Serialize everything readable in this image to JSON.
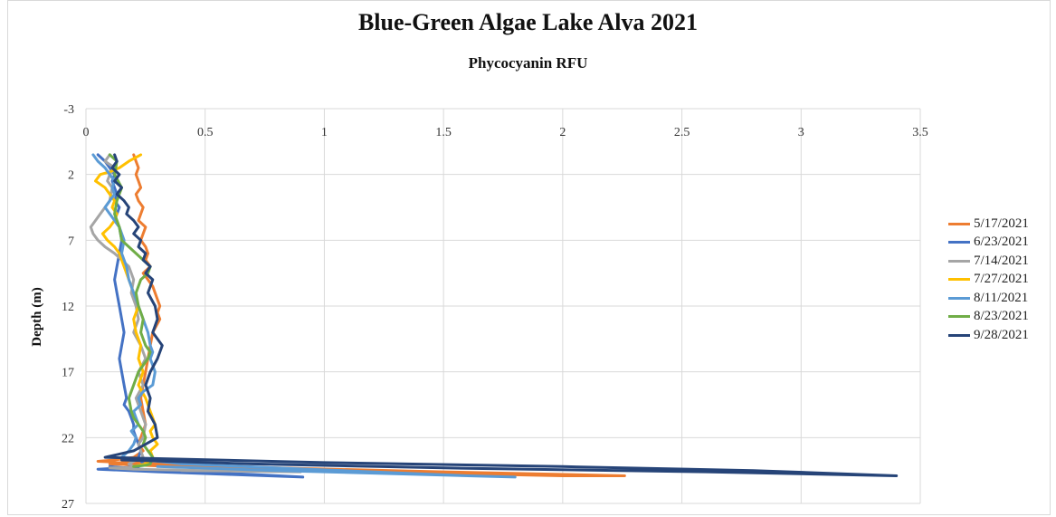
{
  "chart_data": {
    "type": "line",
    "title": "Blue-Green Algae Lake Alva 2021",
    "subtitle": "Phycocyanin RFU",
    "xlabel": "",
    "ylabel": "Depth (m)",
    "xlim": [
      0,
      3.5
    ],
    "ylim": [
      -3,
      27
    ],
    "y_reversed": true,
    "x_axis_position": "top",
    "x_ticks": [
      0,
      0.5,
      1,
      1.5,
      2,
      2.5,
      3,
      3.5
    ],
    "x_tick_labels": [
      "0",
      "0.5",
      "1",
      "1.5",
      "2",
      "2.5",
      "3",
      "3.5"
    ],
    "y_ticks": [
      -3,
      2,
      7,
      12,
      17,
      22,
      27
    ],
    "grid": true,
    "legend_position": "right",
    "series": [
      {
        "name": "5/17/2021",
        "color": "#ED7D31",
        "x": [
          0.2,
          0.21,
          0.22,
          0.21,
          0.22,
          0.23,
          0.21,
          0.22,
          0.24,
          0.23,
          0.22,
          0.25,
          0.24,
          0.23,
          0.25,
          0.26,
          0.25,
          0.27,
          0.24,
          0.26,
          0.28,
          0.29,
          0.3,
          0.31,
          0.3,
          0.31,
          0.28,
          0.27,
          0.26,
          0.25,
          0.24,
          0.23,
          0.24,
          0.25,
          0.23,
          0.22,
          0.24,
          0.2,
          0.12,
          0.05,
          0.3,
          0.8,
          1.5,
          2.26,
          2.0,
          1.2,
          0.5,
          0.1
        ],
        "y": [
          0.5,
          1.0,
          1.5,
          2.0,
          2.5,
          3.0,
          3.5,
          4.0,
          4.5,
          5.0,
          5.5,
          6.0,
          6.5,
          7.0,
          7.5,
          8.0,
          8.5,
          9.0,
          9.5,
          10.0,
          10.5,
          11.0,
          11.5,
          12.0,
          12.5,
          13.0,
          14.0,
          15.0,
          16.0,
          17.0,
          18.0,
          19.0,
          20.0,
          21.0,
          22.0,
          22.5,
          23.0,
          23.5,
          23.7,
          23.8,
          24.0,
          24.3,
          24.6,
          24.9,
          24.9,
          24.6,
          24.3,
          24.0
        ]
      },
      {
        "name": "6/23/2021",
        "color": "#4472C4",
        "x": [
          0.05,
          0.08,
          0.1,
          0.12,
          0.11,
          0.12,
          0.13,
          0.12,
          0.14,
          0.13,
          0.12,
          0.14,
          0.15,
          0.14,
          0.13,
          0.12,
          0.13,
          0.14,
          0.15,
          0.16,
          0.15,
          0.14,
          0.15,
          0.16,
          0.17,
          0.16,
          0.18,
          0.19,
          0.2,
          0.2,
          0.21,
          0.22,
          0.23,
          0.22,
          0.24,
          0.22,
          0.15,
          0.05,
          0.3,
          0.6,
          0.91,
          0.7,
          0.3,
          0.1
        ],
        "y": [
          0.5,
          1.0,
          1.5,
          2.0,
          2.5,
          3.0,
          3.5,
          4.0,
          4.5,
          5.0,
          5.5,
          6.0,
          7.0,
          8.0,
          9.0,
          10.0,
          11.0,
          12.0,
          13.0,
          14.0,
          15.0,
          16.0,
          17.0,
          18.0,
          19.0,
          19.5,
          20.0,
          20.5,
          21.0,
          21.5,
          22.0,
          22.5,
          23.0,
          23.5,
          24.0,
          24.2,
          24.3,
          24.4,
          24.6,
          24.8,
          25.0,
          24.8,
          24.5,
          24.2
        ]
      },
      {
        "name": "7/14/2021",
        "color": "#A5A5A5",
        "x": [
          0.1,
          0.08,
          0.12,
          0.1,
          0.09,
          0.11,
          0.1,
          0.06,
          0.02,
          0.03,
          0.05,
          0.08,
          0.12,
          0.15,
          0.18,
          0.2,
          0.19,
          0.21,
          0.22,
          0.2,
          0.23,
          0.25,
          0.22,
          0.24,
          0.21,
          0.23,
          0.25,
          0.24,
          0.22,
          0.23,
          0.24,
          0.2,
          0.18,
          0.2,
          0.16,
          0.1,
          0.2,
          0.5,
          0.9,
          0.4
        ],
        "y": [
          0.5,
          1.0,
          1.5,
          2.0,
          2.5,
          3.0,
          4.0,
          5.0,
          6.0,
          6.5,
          7.0,
          7.5,
          8.0,
          8.5,
          9.0,
          10.0,
          11.0,
          12.0,
          13.0,
          14.0,
          15.0,
          16.0,
          17.0,
          18.0,
          19.0,
          20.0,
          21.0,
          22.0,
          22.5,
          23.0,
          23.5,
          23.8,
          24.0,
          24.2,
          24.3,
          24.3,
          24.4,
          24.5,
          24.6,
          24.5
        ]
      },
      {
        "name": "7/27/2021",
        "color": "#FFC000",
        "x": [
          0.23,
          0.18,
          0.14,
          0.1,
          0.06,
          0.04,
          0.08,
          0.1,
          0.12,
          0.11,
          0.13,
          0.12,
          0.1,
          0.07,
          0.09,
          0.12,
          0.14,
          0.16,
          0.18,
          0.2,
          0.22,
          0.2,
          0.21,
          0.23,
          0.22,
          0.24,
          0.22,
          0.25,
          0.27,
          0.28,
          0.29,
          0.27,
          0.28,
          0.3,
          0.27,
          0.28,
          0.25,
          0.2
        ],
        "y": [
          0.5,
          1.0,
          1.5,
          1.8,
          2.0,
          2.5,
          3.0,
          3.5,
          4.0,
          4.5,
          5.0,
          5.5,
          6.0,
          6.5,
          7.0,
          7.5,
          8.0,
          9.0,
          10.0,
          11.0,
          12.0,
          13.0,
          14.0,
          15.0,
          16.0,
          17.0,
          18.0,
          19.0,
          20.0,
          20.5,
          21.0,
          21.5,
          22.0,
          22.5,
          23.0,
          23.5,
          24.0,
          24.2
        ]
      },
      {
        "name": "8/11/2021",
        "color": "#5B9BD5",
        "x": [
          0.03,
          0.05,
          0.08,
          0.1,
          0.12,
          0.11,
          0.12,
          0.1,
          0.08,
          0.1,
          0.12,
          0.14,
          0.16,
          0.15,
          0.17,
          0.18,
          0.2,
          0.22,
          0.24,
          0.26,
          0.27,
          0.28,
          0.27,
          0.29,
          0.28,
          0.24,
          0.22,
          0.23,
          0.2,
          0.21,
          0.22,
          0.19,
          0.21,
          0.2,
          0.18,
          0.15,
          0.4,
          0.8,
          1.2,
          1.6,
          1.8,
          1.4,
          0.8,
          0.3
        ],
        "y": [
          0.5,
          1.0,
          1.5,
          2.0,
          2.5,
          3.0,
          3.5,
          4.0,
          4.5,
          5.0,
          5.5,
          6.0,
          7.0,
          8.0,
          9.0,
          10.0,
          11.0,
          12.0,
          13.0,
          14.0,
          15.0,
          15.5,
          16.0,
          17.0,
          18.0,
          18.5,
          19.0,
          19.5,
          20.0,
          20.5,
          21.0,
          21.5,
          22.0,
          22.5,
          23.0,
          23.5,
          24.0,
          24.3,
          24.6,
          24.9,
          25.0,
          24.8,
          24.5,
          24.2
        ]
      },
      {
        "name": "8/23/2021",
        "color": "#70AD47",
        "x": [
          0.1,
          0.13,
          0.12,
          0.15,
          0.13,
          0.12,
          0.14,
          0.15,
          0.18,
          0.21,
          0.24,
          0.27,
          0.26,
          0.23,
          0.21,
          0.22,
          0.24,
          0.23,
          0.25,
          0.27,
          0.26,
          0.24,
          0.22,
          0.2,
          0.18,
          0.19,
          0.2,
          0.22,
          0.24,
          0.25,
          0.24,
          0.26,
          0.28,
          0.27,
          0.25,
          0.2
        ],
        "y": [
          0.5,
          1.0,
          2.0,
          3.0,
          4.0,
          5.0,
          6.0,
          7.0,
          7.5,
          8.0,
          8.5,
          9.0,
          9.5,
          10.0,
          11.0,
          12.0,
          13.0,
          14.0,
          15.0,
          15.5,
          16.0,
          16.5,
          17.0,
          18.0,
          19.0,
          20.0,
          20.5,
          21.0,
          21.5,
          22.0,
          22.5,
          23.0,
          23.5,
          24.0,
          24.1,
          24.2
        ]
      },
      {
        "name": "9/28/2021",
        "color": "#264478",
        "x": [
          0.12,
          0.13,
          0.11,
          0.14,
          0.12,
          0.15,
          0.13,
          0.16,
          0.18,
          0.17,
          0.2,
          0.22,
          0.2,
          0.23,
          0.22,
          0.25,
          0.24,
          0.27,
          0.25,
          0.28,
          0.26,
          0.29,
          0.3,
          0.28,
          0.32,
          0.3,
          0.27,
          0.25,
          0.27,
          0.26,
          0.29,
          0.3,
          0.2,
          0.08,
          1.0,
          2.0,
          2.8,
          3.4,
          2.6,
          1.5,
          0.7,
          0.15
        ],
        "y": [
          0.5,
          1.0,
          1.5,
          2.0,
          2.5,
          3.0,
          3.5,
          4.0,
          4.5,
          5.0,
          5.5,
          6.0,
          6.5,
          7.0,
          7.5,
          8.0,
          8.5,
          9.0,
          9.5,
          10.0,
          11.0,
          12.0,
          13.0,
          14.0,
          15.0,
          16.0,
          17.0,
          18.0,
          19.0,
          20.0,
          21.0,
          22.0,
          23.0,
          23.5,
          23.9,
          24.2,
          24.5,
          24.9,
          24.6,
          24.3,
          24.0,
          23.7
        ]
      }
    ]
  }
}
